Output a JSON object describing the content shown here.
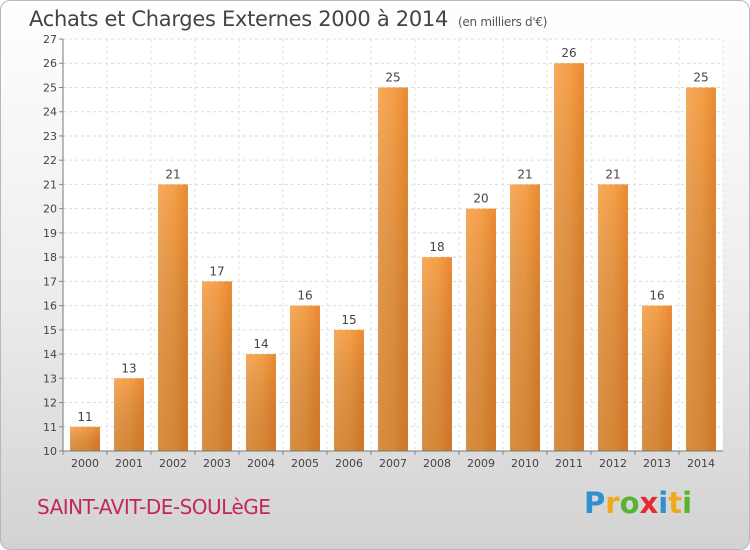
{
  "title": "Achats et Charges Externes 2000 à 2014",
  "subtitle": "(en milliers d'€)",
  "commune": "SAINT-AVIT-DE-SOULèGE",
  "logo": {
    "letters": [
      "P",
      "r",
      "o",
      "x",
      "i",
      "t",
      "i"
    ],
    "colors": [
      "#2f8fd1",
      "#f0a81c",
      "#57b332",
      "#e8292d",
      "#2f8fd1",
      "#f0a81c",
      "#57b332"
    ]
  },
  "chart_data": {
    "type": "bar",
    "title": "Achats et Charges Externes 2000 à 2014",
    "categories": [
      "2000",
      "2001",
      "2002",
      "2003",
      "2004",
      "2005",
      "2006",
      "2007",
      "2008",
      "2009",
      "2010",
      "2011",
      "2012",
      "2013",
      "2014"
    ],
    "values": [
      11,
      13,
      21,
      17,
      14,
      16,
      15,
      25,
      18,
      20,
      21,
      26,
      21,
      16,
      25
    ],
    "yticks": [
      "10",
      "11",
      "12",
      "13",
      "14",
      "15",
      "16",
      "17",
      "18",
      "19",
      "20",
      "21",
      "22",
      "23",
      "24",
      "25",
      "26",
      "27"
    ],
    "ylim": [
      10,
      27
    ],
    "grid": true,
    "bar_color": "#f0923a"
  }
}
